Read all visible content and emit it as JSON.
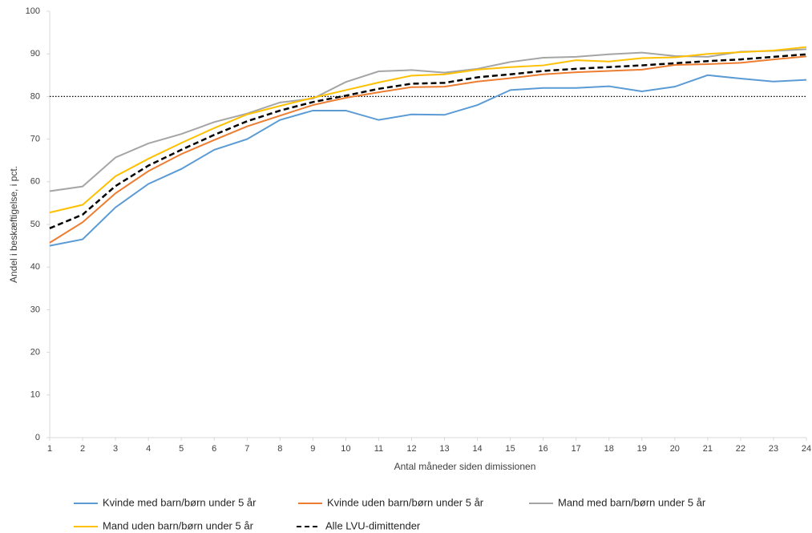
{
  "chart_data": {
    "type": "line",
    "x_label": "Antal måneder siden dimissionen",
    "y_label": "Andel i beskæftigelse, i pct.",
    "x": [
      1,
      2,
      3,
      4,
      5,
      6,
      7,
      8,
      9,
      10,
      11,
      12,
      13,
      14,
      15,
      16,
      17,
      18,
      19,
      20,
      21,
      22,
      23,
      24
    ],
    "xlim": [
      1,
      24
    ],
    "xticks": [
      1,
      2,
      3,
      4,
      5,
      6,
      7,
      8,
      9,
      10,
      11,
      12,
      13,
      14,
      15,
      16,
      17,
      18,
      19,
      20,
      21,
      22,
      23,
      24
    ],
    "ylim": [
      0,
      100
    ],
    "yticks": [
      0,
      10,
      20,
      30,
      40,
      50,
      60,
      70,
      80,
      90,
      100
    ],
    "reference_line": 80,
    "series": [
      {
        "name": "Kvinde med barn/børn under 5 år",
        "color": "#5b9bd5",
        "dashed": false,
        "values": [
          45,
          46.5,
          54,
          59.5,
          63,
          67.5,
          70,
          74.5,
          76.7,
          76.7,
          74.5,
          75.8,
          75.7,
          78,
          81.5,
          82,
          82,
          82.4,
          81.2,
          82.3,
          85,
          84.2,
          83.5,
          83.9
        ]
      },
      {
        "name": "Kvinde uden barn/børn under 5 år",
        "color": "#ed7d31",
        "dashed": false,
        "values": [
          45.7,
          50.5,
          57.3,
          62.5,
          66.5,
          69.8,
          73,
          75.5,
          78,
          79.7,
          81,
          82.2,
          82.3,
          83.5,
          84.3,
          85.2,
          85.7,
          86,
          86.3,
          87.4,
          87.6,
          87.9,
          88.7,
          89.4
        ]
      },
      {
        "name": "Mand med barn/børn under 5 år",
        "color": "#a5a5a5",
        "dashed": false,
        "values": [
          57.8,
          58.9,
          65.7,
          69,
          71.2,
          74,
          76,
          78.6,
          79.5,
          83.4,
          85.9,
          86.2,
          85.6,
          86.5,
          88.1,
          89.1,
          89.3,
          89.9,
          90.3,
          89.5,
          89.3,
          90.5,
          90.7,
          91.1
        ]
      },
      {
        "name": "Mand uden barn/børn under 5 år",
        "color": "#ffc000",
        "dashed": false,
        "values": [
          52.8,
          54.6,
          61.3,
          65.4,
          69.1,
          72.6,
          75.8,
          77.8,
          79.7,
          81.5,
          83.3,
          84.9,
          85.2,
          86.3,
          86.9,
          87.3,
          88.5,
          88.2,
          89,
          89.2,
          90,
          90.4,
          90.8,
          91.6
        ]
      },
      {
        "name": "Alle LVU-dimittender",
        "color": "#000000",
        "dashed": true,
        "values": [
          49.1,
          52.3,
          59,
          63.8,
          67.5,
          71,
          74.2,
          76.7,
          78.7,
          80.2,
          81.8,
          83,
          83.2,
          84.5,
          85.2,
          86,
          86.5,
          86.9,
          87.3,
          87.8,
          88.3,
          88.7,
          89.3,
          89.9
        ]
      }
    ]
  }
}
